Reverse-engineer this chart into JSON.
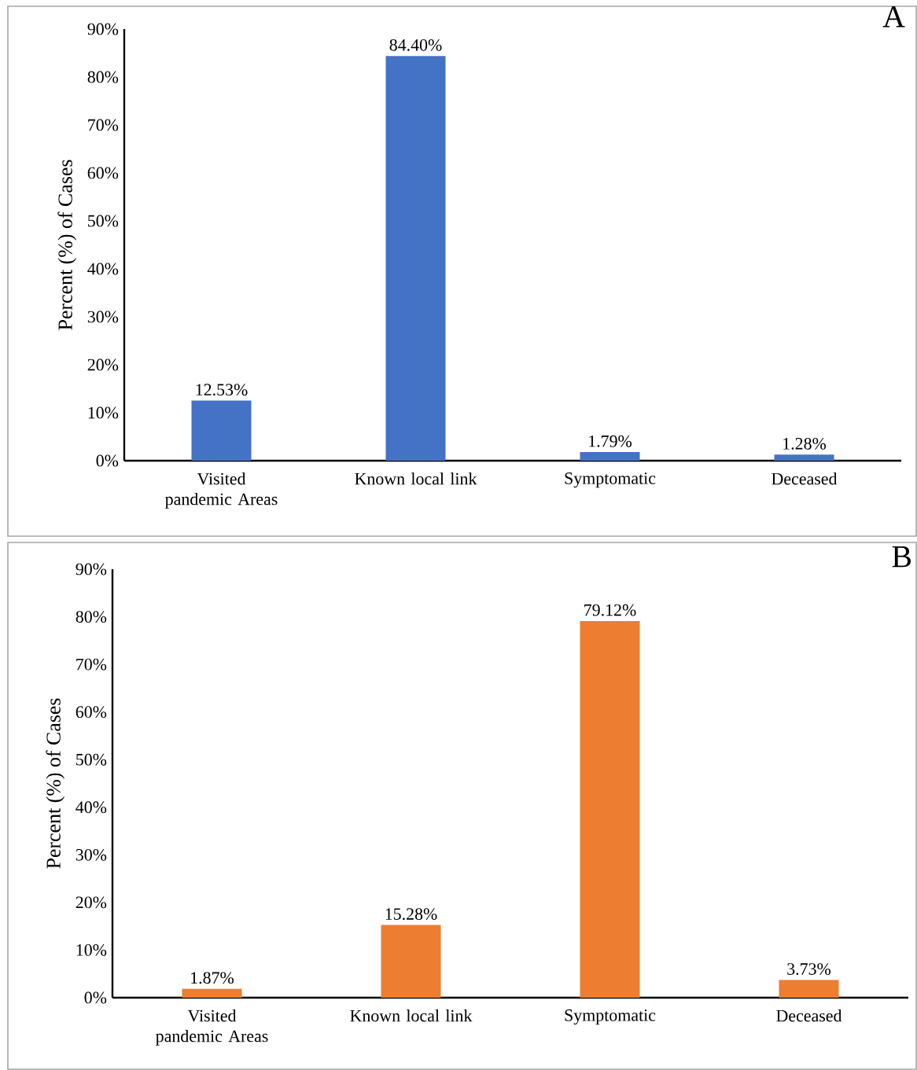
{
  "chart_data": [
    {
      "type": "bar",
      "title": "A",
      "ylabel": "Percent (%) of Cases",
      "categories": [
        "Visited pandemic Areas",
        "Known local link",
        "Symptomatic",
        "Deceased"
      ],
      "values": [
        12.53,
        84.4,
        1.79,
        1.28
      ],
      "color": "#4472c4",
      "value_labels": [
        "12.53%",
        "84.40%",
        "1.79%",
        "1.28%"
      ],
      "ylim": [
        0,
        90
      ],
      "yticks": [
        {
          "value": 0,
          "label": "0%"
        },
        {
          "value": 10,
          "label": "10%"
        },
        {
          "value": 20,
          "label": "20%"
        },
        {
          "value": 30,
          "label": "30%"
        },
        {
          "value": 40,
          "label": "40%"
        },
        {
          "value": 50,
          "label": "50%"
        },
        {
          "value": 60,
          "label": "60%"
        },
        {
          "value": 70,
          "label": "70%"
        },
        {
          "value": 80,
          "label": "80%"
        },
        {
          "value": 90,
          "label": "90%"
        }
      ]
    },
    {
      "type": "bar",
      "title": "B",
      "ylabel": "Percent (%) of Cases",
      "categories": [
        "Visited pandemic Areas",
        "Known local link",
        "Symptomatic",
        "Deceased"
      ],
      "values": [
        1.87,
        15.28,
        79.12,
        3.73
      ],
      "color": "#ed7d31",
      "value_labels": [
        "1.87%",
        "15.28%",
        "79.12%",
        "3.73%"
      ],
      "ylim": [
        0,
        90
      ],
      "yticks": [
        {
          "value": 0,
          "label": "0%"
        },
        {
          "value": 10,
          "label": "10%"
        },
        {
          "value": 20,
          "label": "20%"
        },
        {
          "value": 30,
          "label": "30%"
        },
        {
          "value": 40,
          "label": "40%"
        },
        {
          "value": 50,
          "label": "50%"
        },
        {
          "value": 60,
          "label": "60%"
        },
        {
          "value": 70,
          "label": "70%"
        },
        {
          "value": 80,
          "label": "80%"
        },
        {
          "value": 90,
          "label": "90%"
        }
      ]
    }
  ]
}
